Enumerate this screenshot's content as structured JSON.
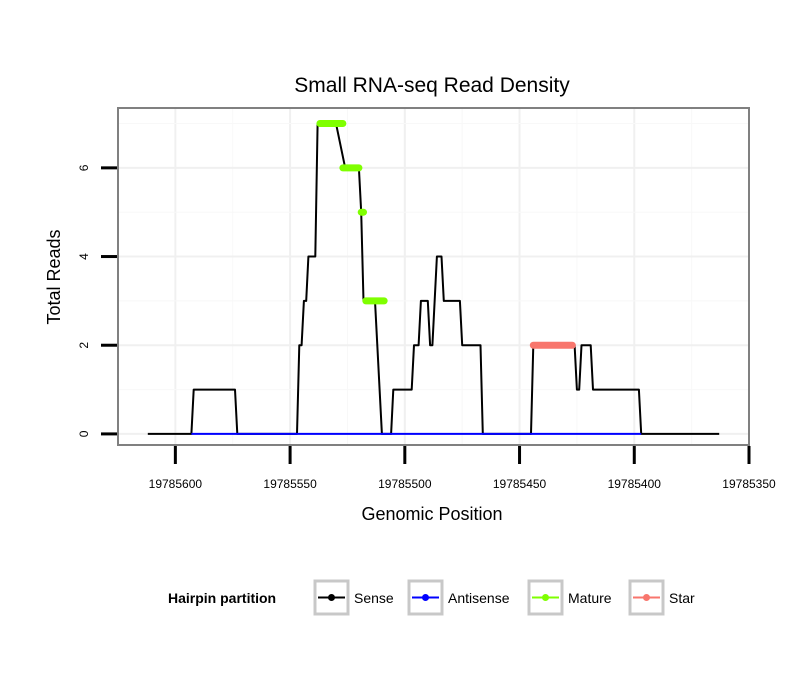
{
  "chart_data": {
    "type": "line",
    "title": "Small RNA-seq Read Density",
    "xlabel": "Genomic Position",
    "ylabel": "Total Reads",
    "xlim": [
      19785625,
      19785350
    ],
    "ylim": [
      -0.25,
      7.35
    ],
    "x_reversed": true,
    "grid": true,
    "xticks": [
      19785600,
      19785550,
      19785500,
      19785450,
      19785400,
      19785350
    ],
    "xtick_labels": [
      "19785600",
      "19785550",
      "19785500",
      "19785450",
      "19785400",
      "19785350"
    ],
    "yticks": [
      0,
      2,
      4,
      6
    ],
    "ytick_labels": [
      "0",
      "2",
      "4",
      "6"
    ],
    "series": [
      {
        "name": "Sense",
        "color": "#000000",
        "points": [
          [
            19785612,
            0
          ],
          [
            19785593,
            0
          ],
          [
            19785592,
            1
          ],
          [
            19785574,
            1
          ],
          [
            19785573,
            0
          ],
          [
            19785547,
            0
          ],
          [
            19785546,
            2
          ],
          [
            19785545,
            2
          ],
          [
            19785544,
            3
          ],
          [
            19785543,
            3
          ],
          [
            19785542,
            4
          ],
          [
            19785539,
            4
          ],
          [
            19785538,
            7
          ],
          [
            19785530,
            7
          ],
          [
            19785526,
            6
          ],
          [
            19785520,
            6
          ],
          [
            19785519,
            5
          ],
          [
            19785518,
            3
          ],
          [
            19785513,
            3
          ],
          [
            19785512,
            2
          ],
          [
            19785510,
            0
          ],
          [
            19785506,
            0
          ],
          [
            19785505,
            1
          ],
          [
            19785497,
            1
          ],
          [
            19785496,
            2
          ],
          [
            19785494,
            2
          ],
          [
            19785493,
            3
          ],
          [
            19785490,
            3
          ],
          [
            19785489,
            2
          ],
          [
            19785488,
            2
          ],
          [
            19785486,
            4
          ],
          [
            19785484,
            4
          ],
          [
            19785483,
            3
          ],
          [
            19785476,
            3
          ],
          [
            19785475,
            2
          ],
          [
            19785467,
            2
          ],
          [
            19785466,
            0
          ],
          [
            19785445,
            0
          ],
          [
            19785444,
            2
          ],
          [
            19785426,
            2
          ],
          [
            19785425,
            1
          ],
          [
            19785424,
            1
          ],
          [
            19785423,
            2
          ],
          [
            19785419,
            2
          ],
          [
            19785418,
            1
          ],
          [
            19785398,
            1
          ],
          [
            19785397,
            0
          ],
          [
            19785363,
            0
          ]
        ]
      },
      {
        "name": "Antisense",
        "color": "#0000ff",
        "points": [
          [
            19785593,
            0
          ],
          [
            19785397,
            0
          ]
        ]
      },
      {
        "name": "Mature",
        "color": "#7fff00",
        "segments": [
          {
            "x0": 19785537,
            "x1": 19785527,
            "y": 7
          },
          {
            "x0": 19785527,
            "x1": 19785520,
            "y": 6
          },
          {
            "x0": 19785519,
            "x1": 19785518,
            "y": 5
          },
          {
            "x0": 19785517,
            "x1": 19785509,
            "y": 3
          }
        ]
      },
      {
        "name": "Star",
        "color": "#f8766d",
        "segments": [
          {
            "x0": 19785444,
            "x1": 19785427,
            "y": 2
          }
        ]
      }
    ],
    "legend": {
      "title": "Hairpin partition",
      "position": "bottom",
      "entries": [
        {
          "label": "Sense",
          "color": "#000000"
        },
        {
          "label": "Antisense",
          "color": "#0000ff"
        },
        {
          "label": "Mature",
          "color": "#7fff00"
        },
        {
          "label": "Star",
          "color": "#f8766d"
        }
      ]
    }
  }
}
